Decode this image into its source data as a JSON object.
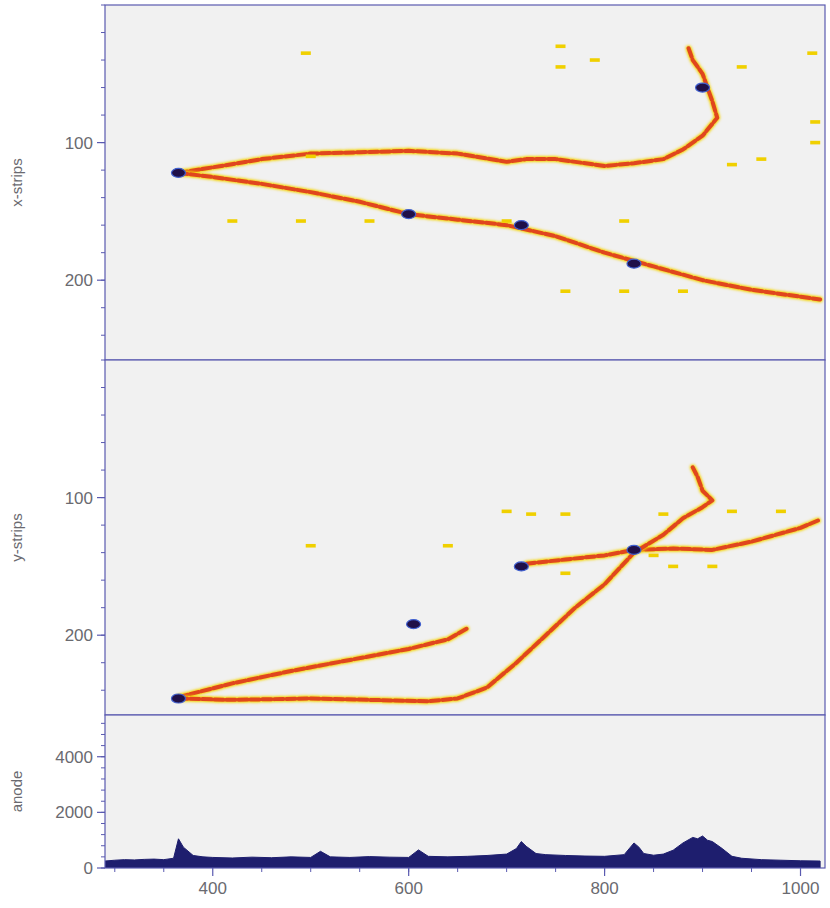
{
  "chart_data": [
    {
      "type": "scatter",
      "y_label": "x-strips",
      "xlim": [
        290,
        1025
      ],
      "ylim": [
        258,
        0
      ],
      "yticks": [
        100,
        200
      ],
      "tick_labels": "y",
      "series": [
        {
          "type": "line",
          "color": "#e0461e",
          "x": [
            365,
            400,
            450,
            500,
            550,
            600,
            650,
            700,
            720,
            750,
            800,
            830,
            860,
            880,
            900,
            915,
            910,
            905,
            900,
            890,
            885
          ],
          "values": [
            122,
            118,
            112,
            108,
            107,
            106,
            108,
            114,
            112,
            112,
            117,
            115,
            112,
            105,
            95,
            82,
            70,
            60,
            50,
            40,
            30
          ]
        },
        {
          "type": "line",
          "color": "#e0461e",
          "x": [
            365,
            400,
            450,
            500,
            550,
            600,
            650,
            700,
            750,
            800,
            850,
            900,
            950,
            1000,
            1020
          ],
          "values": [
            122,
            125,
            130,
            136,
            143,
            152,
            156,
            160,
            168,
            180,
            190,
            200,
            207,
            212,
            214
          ]
        },
        {
          "type": "scatter",
          "color": "#201048",
          "x": [
            365,
            600,
            715,
            830,
            900
          ],
          "values": [
            122,
            152,
            160,
            188,
            60
          ]
        },
        {
          "type": "scatter",
          "color": "#f0d000",
          "x": [
            495,
            755,
            755,
            790,
            940,
            1012,
            1015,
            1015,
            960,
            930,
            420,
            490,
            560,
            700,
            820,
            760,
            820,
            880,
            500
          ],
          "values": [
            35,
            30,
            45,
            40,
            45,
            35,
            85,
            100,
            112,
            116,
            157,
            157,
            157,
            157,
            157,
            208,
            208,
            208,
            110
          ]
        }
      ]
    },
    {
      "type": "scatter",
      "y_label": "y-strips",
      "xlim": [
        290,
        1025
      ],
      "ylim": [
        258,
        0
      ],
      "yticks": [
        100,
        200
      ],
      "tick_labels": "y",
      "series": [
        {
          "type": "line",
          "color": "#e0461e",
          "x": [
            365,
            420,
            480,
            540,
            600,
            640,
            660
          ],
          "values": [
            245,
            235,
            226,
            218,
            210,
            203,
            195
          ]
        },
        {
          "type": "line",
          "color": "#e0461e",
          "x": [
            720,
            760,
            800,
            830,
            870,
            910,
            950,
            1000,
            1020
          ],
          "values": [
            148,
            145,
            142,
            138,
            137,
            138,
            132,
            122,
            116
          ]
        },
        {
          "type": "line",
          "color": "#e0461e",
          "x": [
            365,
            420,
            500,
            560,
            620,
            650,
            680,
            710,
            740,
            770,
            800,
            830,
            860,
            880,
            900,
            910,
            900,
            895,
            890
          ],
          "values": [
            246,
            247,
            246,
            247,
            248,
            246,
            238,
            220,
            200,
            180,
            163,
            140,
            127,
            115,
            107,
            102,
            95,
            85,
            78
          ]
        },
        {
          "type": "scatter",
          "color": "#201048",
          "x": [
            365,
            605,
            715,
            830
          ],
          "values": [
            246,
            192,
            150,
            138
          ]
        },
        {
          "type": "scatter",
          "color": "#f0d000",
          "x": [
            700,
            725,
            760,
            860,
            930,
            980,
            760,
            910,
            500,
            640,
            850,
            870
          ],
          "values": [
            110,
            112,
            112,
            112,
            110,
            110,
            155,
            150,
            135,
            135,
            142,
            150
          ]
        }
      ]
    },
    {
      "type": "area",
      "y_label": "anode",
      "xlim": [
        290,
        1025
      ],
      "ylim": [
        0,
        5500
      ],
      "xticks": [
        400,
        600,
        800,
        1000
      ],
      "yticks": [
        0,
        2000,
        4000
      ],
      "series": [
        {
          "type": "area",
          "color": "#1e1e6e",
          "x": [
            290,
            300,
            310,
            320,
            330,
            340,
            350,
            360,
            365,
            370,
            380,
            390,
            400,
            420,
            440,
            460,
            480,
            500,
            510,
            520,
            540,
            560,
            580,
            600,
            610,
            620,
            640,
            660,
            680,
            700,
            710,
            715,
            720,
            730,
            740,
            760,
            780,
            800,
            820,
            830,
            835,
            840,
            850,
            860,
            870,
            880,
            890,
            895,
            900,
            905,
            910,
            920,
            930,
            940,
            960,
            980,
            1000,
            1020
          ],
          "values": [
            250,
            280,
            300,
            290,
            310,
            320,
            300,
            350,
            1050,
            750,
            450,
            400,
            380,
            360,
            390,
            370,
            400,
            380,
            600,
            400,
            380,
            410,
            390,
            380,
            650,
            420,
            400,
            420,
            450,
            500,
            700,
            950,
            780,
            520,
            480,
            450,
            430,
            420,
            480,
            900,
            750,
            520,
            460,
            500,
            640,
            900,
            1100,
            1050,
            1150,
            1000,
            950,
            700,
            420,
            350,
            300,
            280,
            260,
            250
          ]
        }
      ]
    }
  ]
}
